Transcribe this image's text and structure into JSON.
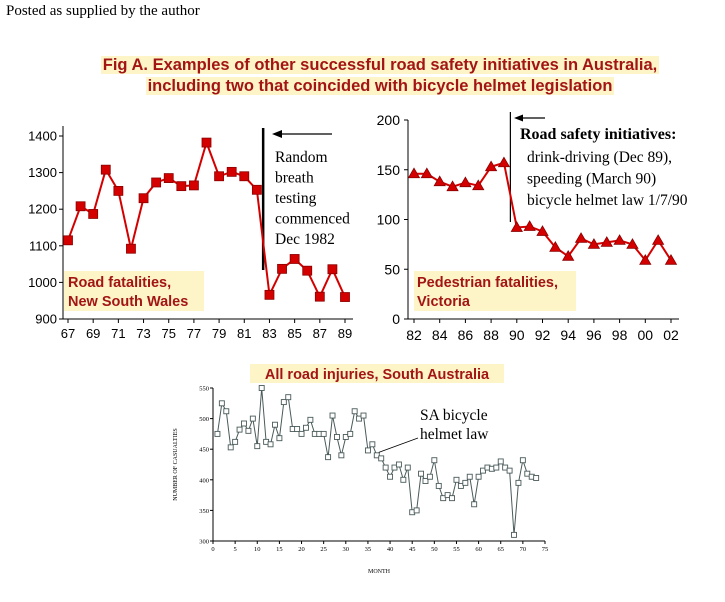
{
  "note": "Posted as supplied by the author",
  "fig_title": {
    "line1": "Fig A. Examples of other successful road safety initiatives in Australia,",
    "line2": "including two that coincided with bicycle helmet legislation"
  },
  "colors": {
    "series": "#d40000",
    "title": "#a31515",
    "highlight": "#fdf5c8",
    "sa": "#4a5a5a"
  },
  "chart_data": [
    {
      "type": "line",
      "label_lines": [
        "Road fatalities,",
        "New South Wales"
      ],
      "x_ticks": [
        "67",
        "69",
        "71",
        "73",
        "75",
        "77",
        "79",
        "81",
        "83",
        "85",
        "87",
        "89"
      ],
      "y_ticks": [
        900,
        1000,
        1100,
        1200,
        1300,
        1400
      ],
      "ylim": [
        900,
        1400
      ],
      "xlim": [
        67,
        89
      ],
      "x": [
        67,
        68,
        69,
        70,
        71,
        72,
        73,
        74,
        75,
        76,
        77,
        78,
        79,
        80,
        81,
        82,
        83,
        84,
        85,
        86,
        87,
        88,
        89
      ],
      "values": [
        1115,
        1208,
        1187,
        1308,
        1250,
        1092,
        1230,
        1273,
        1285,
        1263,
        1265,
        1382,
        1290,
        1302,
        1290,
        1253,
        966,
        1037,
        1064,
        1032,
        961,
        1036,
        960
      ],
      "annotation_lines": [
        "Random",
        "breath",
        "testing",
        "commenced",
        "Dec 1982"
      ],
      "event_x": 82.5
    },
    {
      "type": "line",
      "label_lines": [
        "Pedestrian fatalities,",
        "Victoria"
      ],
      "x_ticks": [
        "82",
        "84",
        "86",
        "88",
        "90",
        "92",
        "94",
        "96",
        "98",
        "00",
        "02"
      ],
      "y_ticks": [
        0,
        50,
        100,
        150,
        200
      ],
      "ylim": [
        0,
        200
      ],
      "xlim": [
        82,
        102
      ],
      "x": [
        82,
        83,
        84,
        85,
        86,
        87,
        88,
        89,
        90,
        91,
        92,
        93,
        94,
        95,
        96,
        97,
        98,
        99,
        100,
        101,
        102
      ],
      "values": [
        146,
        146,
        138,
        133,
        137,
        134,
        153,
        157,
        92,
        93,
        88,
        72,
        63,
        81,
        75,
        77,
        79,
        75,
        59,
        79,
        59
      ],
      "annotation_title": "Road safety initiatives:",
      "annotation_lines": [
        "drink-driving (Dec 89),",
        "speeding (March 90)",
        "bicycle helmet law 1/7/90"
      ],
      "event_x": 89.5
    },
    {
      "type": "line",
      "title": "All road injuries, South Australia",
      "xlabel": "MONTH",
      "ylabel": "NUMBER OF CASUALTIES",
      "x_ticks": [
        0,
        5,
        10,
        15,
        20,
        25,
        30,
        35,
        40,
        45,
        50,
        55,
        60,
        65,
        70,
        75
      ],
      "y_ticks": [
        300,
        350,
        400,
        450,
        500,
        550
      ],
      "ylim": [
        300,
        550
      ],
      "xlim": [
        0,
        75
      ],
      "values": [
        475,
        525,
        512,
        453,
        462,
        482,
        492,
        480,
        500,
        455,
        550,
        462,
        458,
        490,
        468,
        527,
        535,
        483,
        483,
        475,
        485,
        498,
        475,
        475,
        475,
        437,
        505,
        470,
        440,
        470,
        475,
        512,
        500,
        505,
        448,
        458,
        440,
        435,
        420,
        405,
        420,
        425,
        400,
        420,
        347,
        350,
        410,
        398,
        405,
        432,
        390,
        370,
        375,
        370,
        400,
        390,
        395,
        405,
        360,
        405,
        415,
        420,
        418,
        420,
        430,
        420,
        415,
        310,
        395,
        432,
        410,
        405,
        403
      ],
      "annotation_lines": [
        "SA bicycle",
        "helmet law"
      ],
      "event_index": 37
    }
  ]
}
